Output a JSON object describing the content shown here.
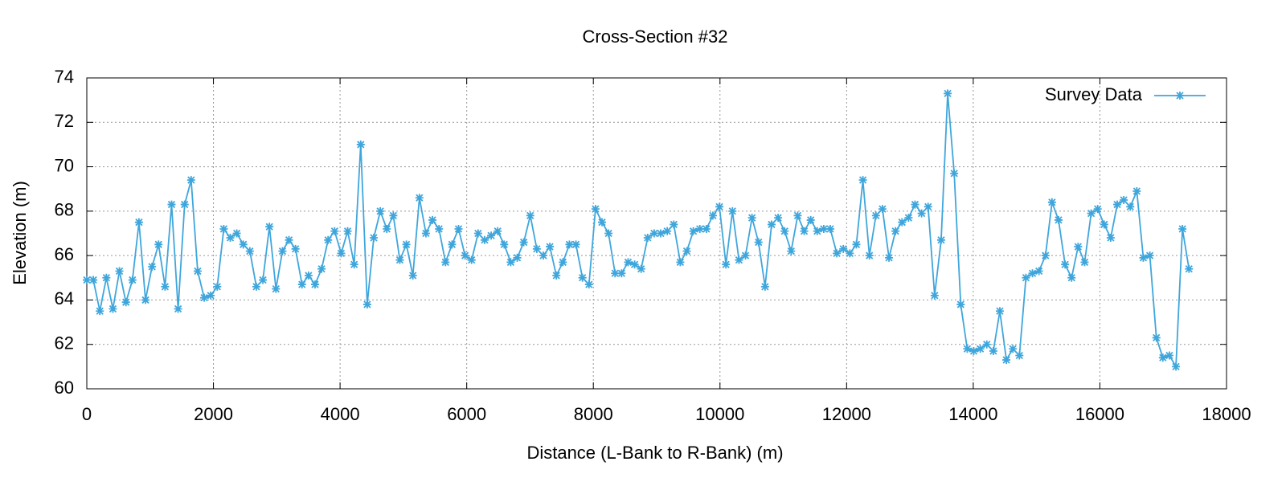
{
  "chart_data": {
    "type": "line",
    "title": "Cross-Section #32",
    "x_label": "Distance (L-Bank to R-Bank) (m)",
    "y_label": "Elevation (m)",
    "x": [
      0,
      103,
      206,
      309,
      412,
      515,
      618,
      721,
      824,
      927,
      1030,
      1133,
      1236,
      1339,
      1442,
      1545,
      1648,
      1751,
      1854,
      1957,
      2060,
      2163,
      2266,
      2369,
      2472,
      2575,
      2678,
      2781,
      2884,
      2987,
      3090,
      3193,
      3296,
      3399,
      3502,
      3605,
      3708,
      3811,
      3914,
      4017,
      4120,
      4223,
      4326,
      4429,
      4532,
      4635,
      4738,
      4841,
      4944,
      5047,
      5150,
      5253,
      5356,
      5459,
      5562,
      5665,
      5768,
      5871,
      5974,
      6077,
      6180,
      6283,
      6386,
      6489,
      6592,
      6695,
      6798,
      6901,
      7004,
      7107,
      7210,
      7313,
      7416,
      7519,
      7622,
      7725,
      7828,
      7931,
      8034,
      8137,
      8240,
      8343,
      8446,
      8549,
      8652,
      8755,
      8858,
      8961,
      9064,
      9167,
      9270,
      9373,
      9476,
      9579,
      9682,
      9785,
      9888,
      9991,
      10094,
      10197,
      10300,
      10403,
      10506,
      10609,
      10712,
      10815,
      10918,
      11021,
      11124,
      11227,
      11330,
      11433,
      11536,
      11639,
      11742,
      11845,
      11948,
      12051,
      12154,
      12257,
      12360,
      12463,
      12566,
      12669,
      12772,
      12875,
      12978,
      13081,
      13184,
      13287,
      13390,
      13493,
      13596,
      13699,
      13802,
      13905,
      14008,
      14111,
      14214,
      14317,
      14420,
      14523,
      14626,
      14729,
      14832,
      14935,
      15038,
      15141,
      15244,
      15347,
      15450,
      15553,
      15656,
      15759,
      15862,
      15965,
      16068,
      16171,
      16274,
      16377,
      16480,
      16583,
      16686,
      16789,
      16892,
      16995,
      17098,
      17201,
      17304,
      17407
    ],
    "series": [
      {
        "name": "Survey Data",
        "color": "#3fa6dc",
        "values": [
          64.9,
          64.9,
          63.5,
          65.0,
          63.6,
          65.3,
          63.9,
          64.9,
          67.5,
          64.0,
          65.5,
          66.5,
          64.6,
          68.3,
          63.6,
          68.3,
          69.4,
          65.3,
          64.1,
          64.2,
          64.6,
          67.2,
          66.8,
          67.0,
          66.5,
          66.2,
          64.6,
          64.9,
          67.3,
          64.5,
          66.2,
          66.7,
          66.3,
          64.7,
          65.1,
          64.7,
          65.4,
          66.7,
          67.1,
          66.1,
          67.1,
          65.6,
          71.0,
          63.8,
          66.8,
          68.0,
          67.2,
          67.8,
          65.8,
          66.5,
          65.1,
          68.6,
          67.0,
          67.6,
          67.2,
          65.7,
          66.5,
          67.2,
          66.0,
          65.8,
          67.0,
          66.7,
          66.9,
          67.1,
          66.5,
          65.7,
          65.9,
          66.6,
          67.8,
          66.3,
          66.0,
          66.4,
          65.1,
          65.7,
          66.5,
          66.5,
          65.0,
          64.7,
          68.1,
          67.5,
          67.0,
          65.2,
          65.2,
          65.7,
          65.6,
          65.4,
          66.8,
          67.0,
          67.0,
          67.1,
          67.4,
          65.7,
          66.2,
          67.1,
          67.2,
          67.2,
          67.8,
          68.2,
          65.6,
          68.0,
          65.8,
          66.0,
          67.7,
          66.6,
          64.6,
          67.4,
          67.7,
          67.1,
          66.2,
          67.8,
          67.1,
          67.6,
          67.1,
          67.2,
          67.2,
          66.1,
          66.3,
          66.1,
          66.5,
          69.4,
          66.0,
          67.8,
          68.1,
          65.9,
          67.1,
          67.5,
          67.7,
          68.3,
          67.9,
          68.2,
          64.2,
          66.7,
          73.3,
          69.7,
          63.8,
          61.8,
          61.7,
          61.8,
          62.0,
          61.7,
          63.5,
          61.3,
          61.8,
          61.5,
          65.0,
          65.2,
          65.3,
          66.0,
          68.4,
          67.6,
          65.6,
          65.0,
          66.4,
          65.7,
          67.9,
          68.1,
          67.4,
          66.8,
          68.3,
          68.5,
          68.2,
          68.9,
          65.9,
          66.0,
          62.3,
          61.4,
          61.5,
          61.0,
          67.2,
          65.4
        ]
      }
    ],
    "xlim": [
      0,
      18000
    ],
    "xticks": [
      0,
      2000,
      4000,
      6000,
      8000,
      10000,
      12000,
      14000,
      16000,
      18000
    ],
    "ylim": [
      60,
      74
    ],
    "yticks": [
      60,
      62,
      64,
      66,
      68,
      70,
      72,
      74
    ],
    "grid": true,
    "legend": "top-right"
  }
}
